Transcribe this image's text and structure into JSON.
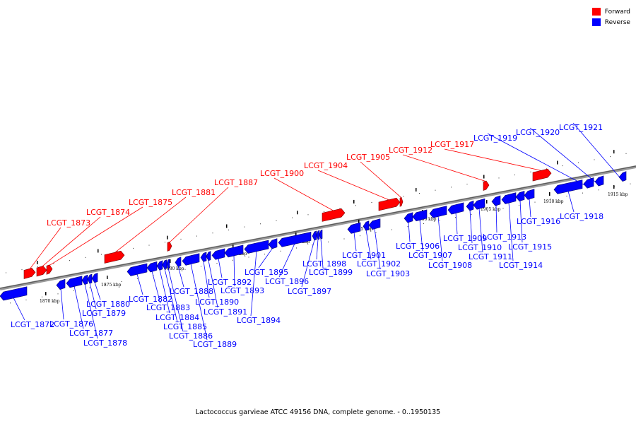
{
  "legend": {
    "forward_label": "Forward",
    "reverse_label": "Reverse",
    "forward_color": "#ff0000",
    "reverse_color": "#0000ff"
  },
  "footer": "Lactococcus garvieae ATCC 49156 DNA, complete genome. - 0..1950135",
  "axis": {
    "unit": "kbp",
    "ticks": [
      "1870 kbp",
      "1875 kbp",
      "1880 kbp",
      "1885 kbp",
      "1890 kbp",
      "1895 kbp",
      "1900 kbp",
      "1905 kbp",
      "1910 kbp",
      "1915 kbp"
    ]
  },
  "genes": [
    {
      "name": "LCGT_1872",
      "strand": "reverse"
    },
    {
      "name": "LCGT_1873",
      "strand": "forward"
    },
    {
      "name": "LCGT_1874",
      "strand": "forward"
    },
    {
      "name": "LCGT_1875",
      "strand": "forward"
    },
    {
      "name": "LCGT_1876",
      "strand": "reverse"
    },
    {
      "name": "LCGT_1877",
      "strand": "reverse"
    },
    {
      "name": "LCGT_1878",
      "strand": "reverse"
    },
    {
      "name": "LCGT_1879",
      "strand": "reverse"
    },
    {
      "name": "LCGT_1880",
      "strand": "reverse"
    },
    {
      "name": "LCGT_1881",
      "strand": "forward"
    },
    {
      "name": "LCGT_1882",
      "strand": "reverse"
    },
    {
      "name": "LCGT_1883",
      "strand": "reverse"
    },
    {
      "name": "LCGT_1884",
      "strand": "reverse"
    },
    {
      "name": "LCGT_1885",
      "strand": "reverse"
    },
    {
      "name": "LCGT_1886",
      "strand": "reverse"
    },
    {
      "name": "LCGT_1887",
      "strand": "forward"
    },
    {
      "name": "LCGT_1888",
      "strand": "reverse"
    },
    {
      "name": "LCGT_1889",
      "strand": "reverse"
    },
    {
      "name": "LCGT_1890",
      "strand": "reverse"
    },
    {
      "name": "LCGT_1891",
      "strand": "reverse"
    },
    {
      "name": "LCGT_1892",
      "strand": "reverse"
    },
    {
      "name": "LCGT_1893",
      "strand": "reverse"
    },
    {
      "name": "LCGT_1894",
      "strand": "reverse"
    },
    {
      "name": "LCGT_1895",
      "strand": "reverse"
    },
    {
      "name": "LCGT_1896",
      "strand": "reverse"
    },
    {
      "name": "LCGT_1897",
      "strand": "reverse"
    },
    {
      "name": "LCGT_1898",
      "strand": "reverse"
    },
    {
      "name": "LCGT_1899",
      "strand": "reverse"
    },
    {
      "name": "LCGT_1900",
      "strand": "forward"
    },
    {
      "name": "LCGT_1901",
      "strand": "reverse"
    },
    {
      "name": "LCGT_1902",
      "strand": "reverse"
    },
    {
      "name": "LCGT_1903",
      "strand": "reverse"
    },
    {
      "name": "LCGT_1904",
      "strand": "forward"
    },
    {
      "name": "LCGT_1905",
      "strand": "forward"
    },
    {
      "name": "LCGT_1906",
      "strand": "reverse"
    },
    {
      "name": "LCGT_1907",
      "strand": "reverse"
    },
    {
      "name": "LCGT_1908",
      "strand": "reverse"
    },
    {
      "name": "LCGT_1909",
      "strand": "reverse"
    },
    {
      "name": "LCGT_1910",
      "strand": "reverse"
    },
    {
      "name": "LCGT_1911",
      "strand": "reverse"
    },
    {
      "name": "LCGT_1912",
      "strand": "forward"
    },
    {
      "name": "LCGT_1913",
      "strand": "reverse"
    },
    {
      "name": "LCGT_1914",
      "strand": "reverse"
    },
    {
      "name": "LCGT_1915",
      "strand": "reverse"
    },
    {
      "name": "LCGT_1916",
      "strand": "reverse"
    },
    {
      "name": "LCGT_1917",
      "strand": "forward"
    },
    {
      "name": "LCGT_1918",
      "strand": "reverse"
    },
    {
      "name": "LCGT_1919",
      "strand": "reverse"
    },
    {
      "name": "LCGT_1920",
      "strand": "reverse"
    },
    {
      "name": "LCGT_1921",
      "strand": "reverse"
    }
  ]
}
